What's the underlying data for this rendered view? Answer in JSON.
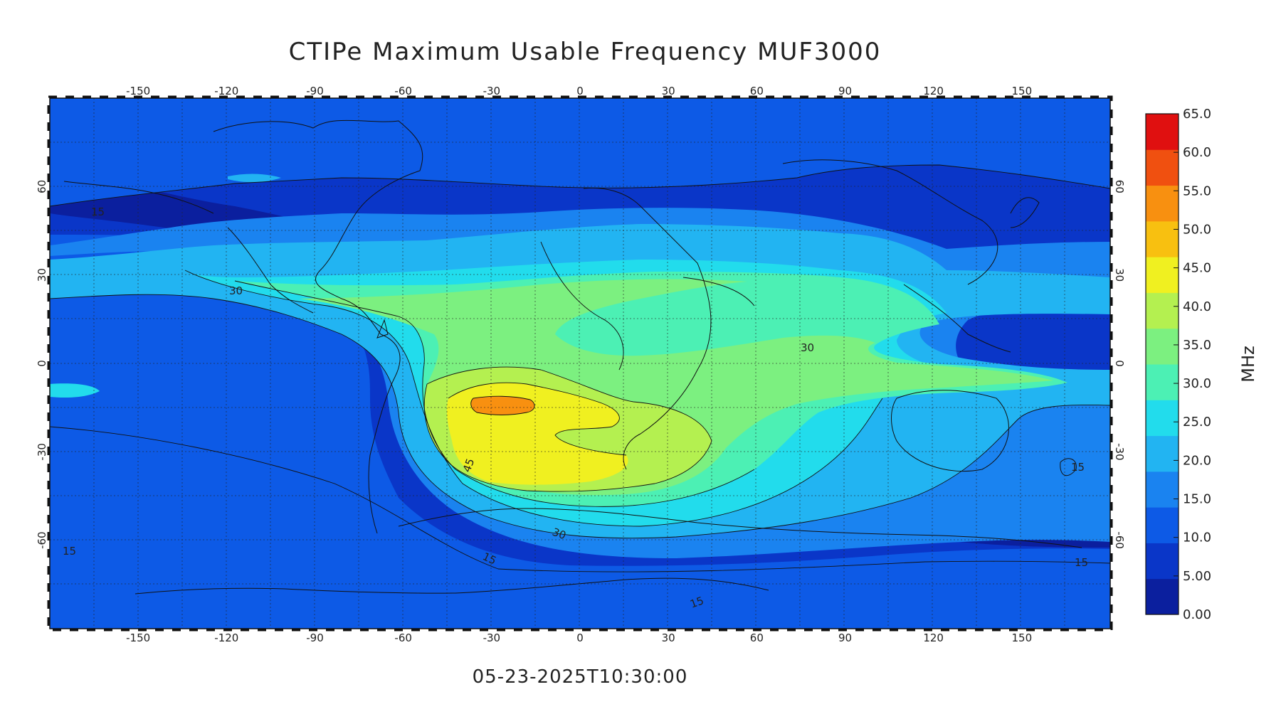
{
  "title": "CTIPe Maximum Usable Frequency MUF3000",
  "timestamp": "05-23-2025T10:30:00",
  "lon_ticks": [
    "-150",
    "-120",
    "-90",
    "-60",
    "-30",
    "0",
    "30",
    "60",
    "90",
    "120",
    "150"
  ],
  "lat_ticks": [
    "60",
    "30",
    "0",
    "-30",
    "-60"
  ],
  "contour_labels": [
    "15",
    "30",
    "45",
    "30",
    "30",
    "15",
    "15",
    "15",
    "15",
    "15"
  ],
  "colorbar": {
    "unit": "MHz",
    "ticks": [
      "65.0",
      "60.0",
      "55.0",
      "50.0",
      "45.0",
      "40.0",
      "35.0",
      "30.0",
      "25.0",
      "20.0",
      "15.0",
      "10.0",
      "5.00",
      "0.00"
    ],
    "colors": [
      "#0b1f9e",
      "#0a36c8",
      "#0d5ae6",
      "#1a83f0",
      "#22b4f2",
      "#22dcec",
      "#4cf0b4",
      "#7cf080",
      "#b4f050",
      "#f0f020",
      "#f8c010",
      "#f89010",
      "#f05010",
      "#e01010"
    ]
  }
}
